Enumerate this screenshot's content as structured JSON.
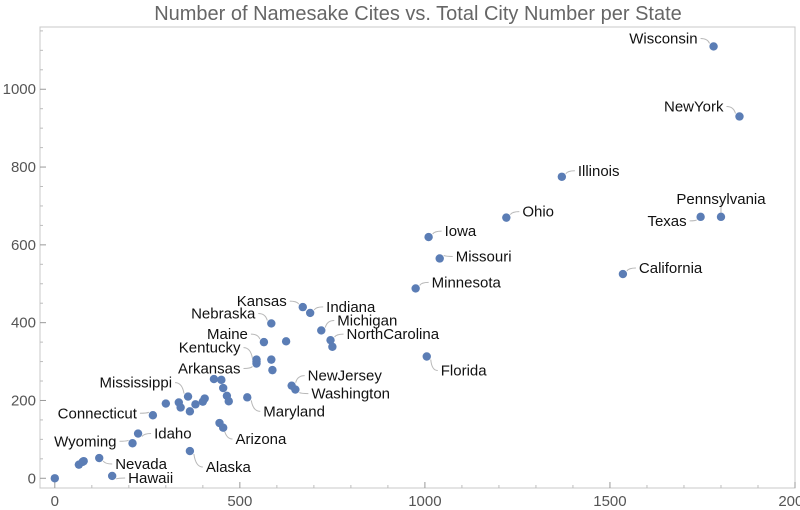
{
  "chart_data": {
    "type": "scatter",
    "title": "Number of Namesake Cites vs. Total City Number per State",
    "xlabel": "",
    "ylabel": "",
    "xlim": [
      -40,
      2000
    ],
    "ylim": [
      -25,
      1160
    ],
    "x_ticks": [
      0,
      500,
      1000,
      1500,
      2000
    ],
    "y_ticks": [
      0,
      200,
      400,
      600,
      800,
      1000
    ],
    "grid": false,
    "marker_color": "#5b7db5",
    "points": [
      {
        "x": 1780,
        "y": 1110,
        "label": "Wisconsin"
      },
      {
        "x": 1850,
        "y": 930,
        "label": "NewYork"
      },
      {
        "x": 1370,
        "y": 775,
        "label": "Illinois"
      },
      {
        "x": 1800,
        "y": 672,
        "label": "Pennsylvania"
      },
      {
        "x": 1745,
        "y": 672,
        "label": "Texas"
      },
      {
        "x": 1220,
        "y": 670,
        "label": "Ohio"
      },
      {
        "x": 1010,
        "y": 620,
        "label": "Iowa"
      },
      {
        "x": 1040,
        "y": 565,
        "label": "Missouri"
      },
      {
        "x": 1535,
        "y": 525,
        "label": "California"
      },
      {
        "x": 975,
        "y": 488,
        "label": "Minnesota"
      },
      {
        "x": 670,
        "y": 440,
        "label": "Kansas"
      },
      {
        "x": 690,
        "y": 425,
        "label": "Indiana"
      },
      {
        "x": 585,
        "y": 398,
        "label": "Nebraska"
      },
      {
        "x": 720,
        "y": 380,
        "label": "Michigan"
      },
      {
        "x": 565,
        "y": 350,
        "label": "Maine"
      },
      {
        "x": 745,
        "y": 355,
        "label": "NorthCarolina"
      },
      {
        "x": 545,
        "y": 300,
        "label": "Kentucky"
      },
      {
        "x": 545,
        "y": 295,
        "label": "Arkansas"
      },
      {
        "x": 1005,
        "y": 313,
        "label": "Florida"
      },
      {
        "x": 640,
        "y": 238,
        "label": "NewJersey"
      },
      {
        "x": 650,
        "y": 228,
        "label": "Washington"
      },
      {
        "x": 360,
        "y": 210,
        "label": "Mississippi"
      },
      {
        "x": 520,
        "y": 208,
        "label": "Maryland"
      },
      {
        "x": 265,
        "y": 162,
        "label": "Connecticut"
      },
      {
        "x": 445,
        "y": 142,
        "label": "Arizona"
      },
      {
        "x": 225,
        "y": 115,
        "label": "Idaho"
      },
      {
        "x": 210,
        "y": 90,
        "label": "Wyoming"
      },
      {
        "x": 120,
        "y": 52,
        "label": "Nevada"
      },
      {
        "x": 365,
        "y": 70,
        "label": "Alaska"
      },
      {
        "x": 155,
        "y": 6,
        "label": "Hawaii"
      },
      {
        "x": 0,
        "y": 0
      },
      {
        "x": 65,
        "y": 35
      },
      {
        "x": 78,
        "y": 44
      },
      {
        "x": 75,
        "y": 42
      },
      {
        "x": 300,
        "y": 192
      },
      {
        "x": 335,
        "y": 195
      },
      {
        "x": 340,
        "y": 182
      },
      {
        "x": 365,
        "y": 172
      },
      {
        "x": 380,
        "y": 190
      },
      {
        "x": 400,
        "y": 197
      },
      {
        "x": 405,
        "y": 205
      },
      {
        "x": 430,
        "y": 255
      },
      {
        "x": 450,
        "y": 253
      },
      {
        "x": 455,
        "y": 232
      },
      {
        "x": 465,
        "y": 212
      },
      {
        "x": 470,
        "y": 198
      },
      {
        "x": 455,
        "y": 130
      },
      {
        "x": 545,
        "y": 305
      },
      {
        "x": 585,
        "y": 305
      },
      {
        "x": 588,
        "y": 278
      },
      {
        "x": 625,
        "y": 352
      },
      {
        "x": 750,
        "y": 338
      }
    ]
  }
}
